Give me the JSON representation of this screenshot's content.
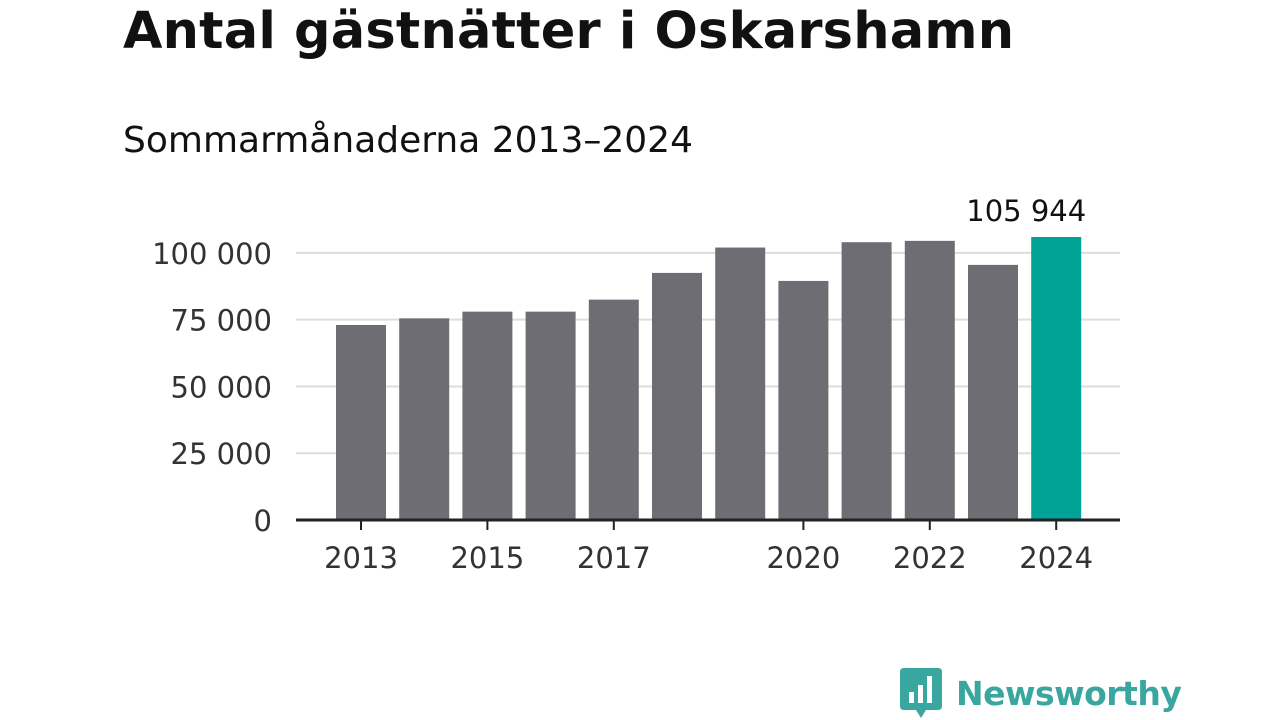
{
  "title": "Antal gästnätter i Oskarshamn",
  "subtitle": "Sommarmånaderna 2013–2024",
  "chart_data": {
    "type": "bar",
    "title": "Antal gästnätter i Oskarshamn",
    "subtitle": "Sommarmånaderna 2013–2024",
    "categories": [
      "2013",
      "2014",
      "2015",
      "2016",
      "2017",
      "2018",
      "2019",
      "2020",
      "2021",
      "2022",
      "2023",
      "2024"
    ],
    "values": [
      73000,
      75500,
      78000,
      78000,
      82500,
      92500,
      102000,
      89500,
      104000,
      104500,
      95500,
      105944
    ],
    "highlight_index": 11,
    "highlight_label": "105 944",
    "x_tick_labels": [
      {
        "category": "2013",
        "label": "2013"
      },
      {
        "category": "2015",
        "label": "2015"
      },
      {
        "category": "2017",
        "label": "2017"
      },
      {
        "category": "2020",
        "label": "2020"
      },
      {
        "category": "2022",
        "label": "2022"
      },
      {
        "category": "2024",
        "label": "2024"
      }
    ],
    "y_ticks": [
      {
        "value": 0,
        "label": "0"
      },
      {
        "value": 25000,
        "label": "25 000"
      },
      {
        "value": 50000,
        "label": "50 000"
      },
      {
        "value": 75000,
        "label": "75 000"
      },
      {
        "value": 100000,
        "label": "100 000"
      }
    ],
    "ylim": [
      0,
      105944
    ],
    "grid": true,
    "xlabel": "",
    "ylabel": "",
    "colors": {
      "bar": "#6e6d74",
      "highlight": "#00a396",
      "grid": "#dddddd",
      "axis": "#222222",
      "text": "#333333"
    }
  },
  "brand": {
    "name": "Newsworthy",
    "icon": "newsworthy-chart-bubble-icon",
    "color": "#3aa6a0"
  }
}
